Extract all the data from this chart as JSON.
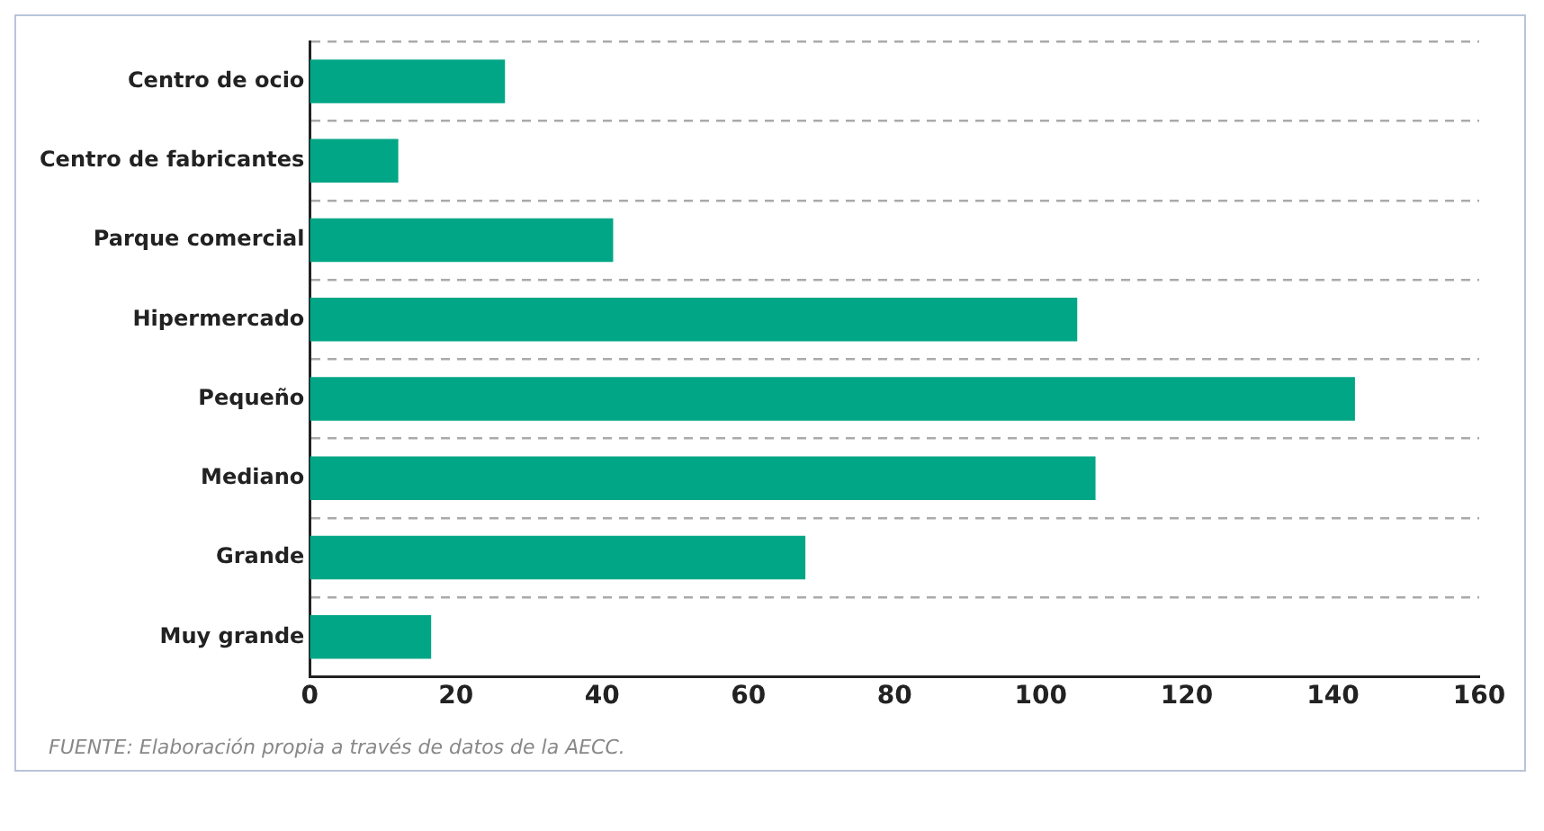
{
  "chart_data": {
    "type": "bar",
    "orientation": "horizontal",
    "categories": [
      "Centro de ocio",
      "Centro de fabricantes",
      "Parque comercial",
      "Hipermercado",
      "Pequeño",
      "Mediano",
      "Grande",
      "Muy grande"
    ],
    "values": [
      26.7,
      12.1,
      41.5,
      105,
      143,
      107.5,
      67.8,
      16.6
    ],
    "color": "#00a685",
    "xlim": [
      0,
      160
    ],
    "xticks": [
      0,
      20,
      40,
      60,
      80,
      100,
      120,
      140,
      160
    ],
    "grid": "y",
    "legend": false,
    "annotations": [
      "FUENTE: Elaboración propia a través de datos de la AECC."
    ]
  }
}
